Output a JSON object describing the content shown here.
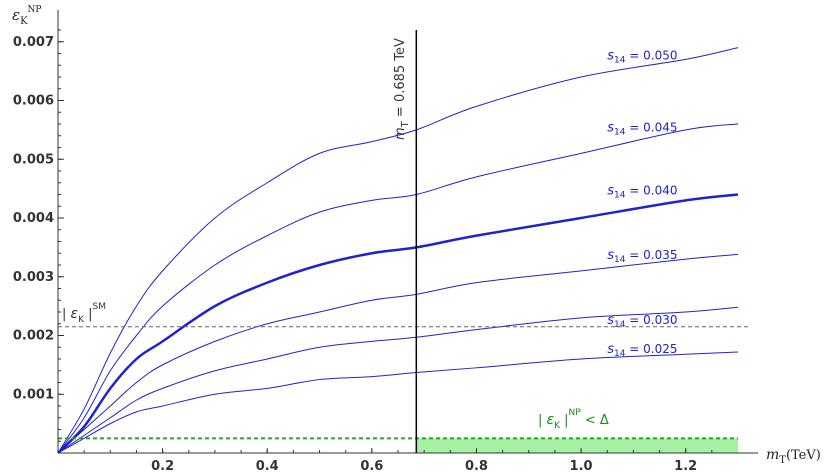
{
  "chart_data": {
    "type": "line",
    "y_axis_title": "εK NP",
    "x_axis_title": "mT(TeV)",
    "xlim": [
      0,
      1.3
    ],
    "ylim": [
      0,
      0.0072
    ],
    "x_ticks": [
      "0.2",
      "0.4",
      "0.6",
      "0.8",
      "1.0",
      "1.2"
    ],
    "y_ticks": [
      "0.001",
      "0.002",
      "0.003",
      "0.004",
      "0.005",
      "0.006",
      "0.007"
    ],
    "grid": false,
    "series": [
      {
        "name": "s14 = 0.050",
        "highlight": false,
        "x": [
          0,
          0.05,
          0.1,
          0.15,
          0.2,
          0.3,
          0.4,
          0.5,
          0.6,
          0.685,
          0.8,
          1.0,
          1.2,
          1.3
        ],
        "y": [
          0,
          0.00075,
          0.0017,
          0.0025,
          0.0031,
          0.004,
          0.0046,
          0.0051,
          0.0053,
          0.0055,
          0.0059,
          0.0064,
          0.0067,
          0.0069
        ]
      },
      {
        "name": "s14 = 0.045",
        "highlight": false,
        "x": [
          0,
          0.05,
          0.1,
          0.15,
          0.2,
          0.3,
          0.4,
          0.5,
          0.6,
          0.685,
          0.8,
          1.0,
          1.2,
          1.3
        ],
        "y": [
          0,
          0.0006,
          0.0014,
          0.002,
          0.0025,
          0.0032,
          0.0037,
          0.0041,
          0.0043,
          0.0044,
          0.0047,
          0.0051,
          0.0055,
          0.0056
        ]
      },
      {
        "name": "s14 = 0.040",
        "highlight": true,
        "x": [
          0,
          0.05,
          0.1,
          0.15,
          0.2,
          0.3,
          0.4,
          0.5,
          0.6,
          0.685,
          0.8,
          1.0,
          1.2,
          1.3
        ],
        "y": [
          0,
          0.00045,
          0.0011,
          0.0016,
          0.0019,
          0.0025,
          0.0029,
          0.0032,
          0.0034,
          0.0035,
          0.0037,
          0.004,
          0.0043,
          0.0044
        ]
      },
      {
        "name": "s14 = 0.035",
        "highlight": false,
        "x": [
          0,
          0.05,
          0.1,
          0.15,
          0.2,
          0.3,
          0.4,
          0.5,
          0.6,
          0.685,
          0.8,
          1.0,
          1.2,
          1.3
        ],
        "y": [
          0,
          0.0004,
          0.0008,
          0.0012,
          0.0015,
          0.0019,
          0.0022,
          0.0024,
          0.0026,
          0.0027,
          0.0029,
          0.0031,
          0.0033,
          0.00338
        ]
      },
      {
        "name": "s14 = 0.030",
        "highlight": false,
        "x": [
          0,
          0.05,
          0.1,
          0.15,
          0.2,
          0.3,
          0.4,
          0.5,
          0.6,
          0.685,
          0.8,
          1.0,
          1.2,
          1.3
        ],
        "y": [
          0,
          0.0003,
          0.0006,
          0.0009,
          0.0011,
          0.0014,
          0.0016,
          0.0018,
          0.0019,
          0.00197,
          0.0021,
          0.0023,
          0.0024,
          0.00248
        ]
      },
      {
        "name": "s14 = 0.025",
        "highlight": false,
        "x": [
          0,
          0.05,
          0.1,
          0.15,
          0.2,
          0.3,
          0.4,
          0.5,
          0.6,
          0.685,
          0.8,
          1.0,
          1.2,
          1.3
        ],
        "y": [
          0,
          0.00025,
          0.0005,
          0.0007,
          0.0008,
          0.001,
          0.0011,
          0.00125,
          0.0013,
          0.00137,
          0.00145,
          0.0016,
          0.00168,
          0.00172
        ]
      }
    ],
    "curve_labels": [
      {
        "text": "s14 = 0.050",
        "x": 1.05,
        "y": 0.0067
      },
      {
        "text": "s14 = 0.045",
        "x": 1.05,
        "y": 0.00547
      },
      {
        "text": "s14 = 0.040",
        "x": 1.05,
        "y": 0.0044
      },
      {
        "text": "s14 = 0.035",
        "x": 1.05,
        "y": 0.0033
      },
      {
        "text": "s14 = 0.030",
        "x": 1.05,
        "y": 0.0022
      },
      {
        "text": "s14 = 0.025",
        "x": 1.05,
        "y": 0.0017
      }
    ],
    "vertical_line": {
      "x": 0.685,
      "label": "mT = 0.685 TeV"
    },
    "sm_line": {
      "y": 0.00215,
      "label": "| εK |SM"
    },
    "np_bound": {
      "y": 0.00025,
      "label": "| εK |NP < Δ",
      "x_shade_start": 0.685
    },
    "colors": {
      "curve": "#2222cc",
      "sm_line": "#666666",
      "bound_line": "#22aa22",
      "shade": "#a6f0a6",
      "vline": "#000000"
    }
  }
}
